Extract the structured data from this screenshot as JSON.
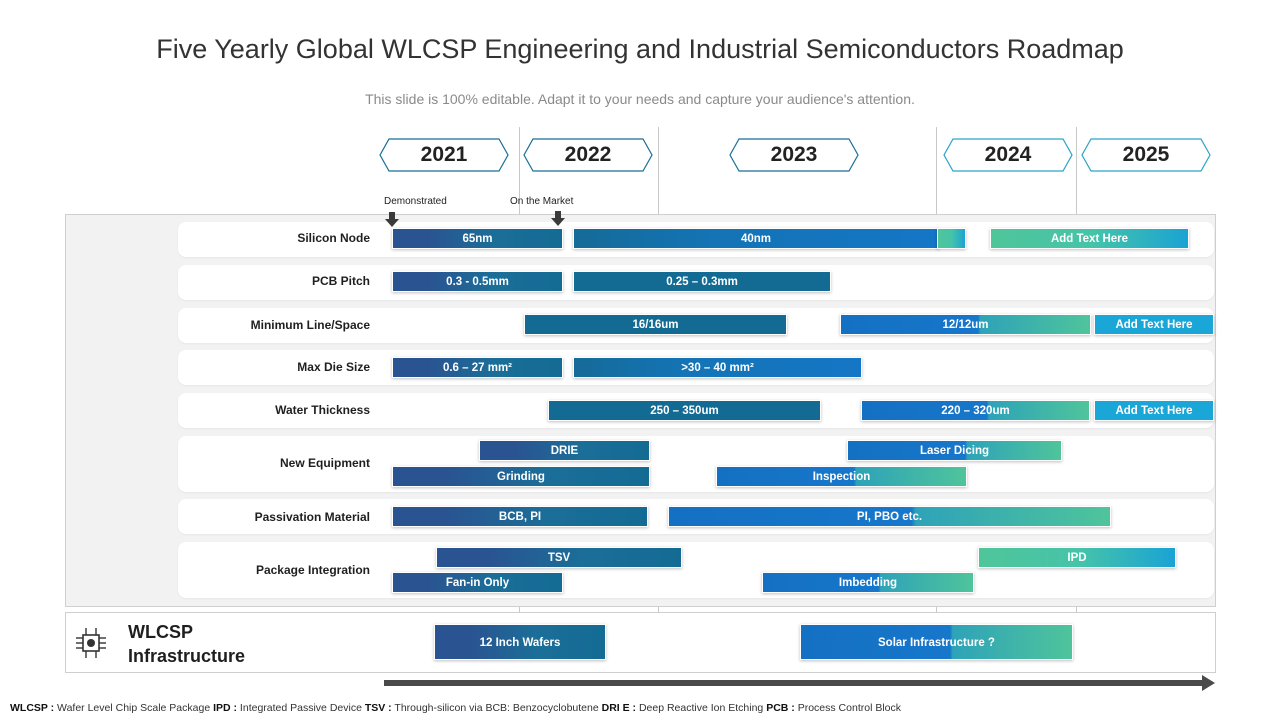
{
  "title": "Five Yearly Global WLCSP Engineering and Industrial Semiconductors Roadmap",
  "subtitle": "This slide is 100% editable. Adapt it to your needs and capture your audience's attention.",
  "years": [
    "2021",
    "2022",
    "2023",
    "2024",
    "2025"
  ],
  "markers": {
    "demonstrated": "Demonstrated",
    "on_market": "On the Market"
  },
  "rows": [
    {
      "label": "Silicon Node",
      "bars": [
        "65nm",
        "40nm",
        "",
        "Add Text Here"
      ]
    },
    {
      "label": "PCB Pitch",
      "bars": [
        "0.3 - 0.5mm",
        "0.25 – 0.3mm"
      ]
    },
    {
      "label": "Minimum Line/Space",
      "bars": [
        "16/16um",
        "12/12um",
        "Add  Text Here"
      ]
    },
    {
      "label": "Max Die Size",
      "bars": [
        "0.6 – 27 mm²",
        ">30 – 40 mm²"
      ]
    },
    {
      "label": "Water Thickness",
      "bars": [
        "250 – 350um",
        "220 – 320um",
        "Add  Text Here"
      ]
    },
    {
      "label": "New Equipment",
      "bars": [
        "DRIE",
        "Grinding",
        "Laser Dicing",
        "Inspection"
      ]
    },
    {
      "label": "Passivation Material",
      "bars": [
        "BCB,  PI",
        "PI, PBO etc."
      ]
    },
    {
      "label": "Package Integration",
      "bars": [
        "TSV",
        "Fan-in Only",
        "IPD",
        "Imbedding"
      ]
    }
  ],
  "infrastructure": {
    "title_line1": "WLCSP",
    "title_line2": "Infrastructure",
    "icon": "chip-icon",
    "bars": [
      "12 Inch Wafers",
      "Solar Infrastructure ?"
    ]
  },
  "footer": [
    {
      "term": "WLCSP :",
      "def": " Wafer Level Chip Scale Package "
    },
    {
      "term": "IPD :",
      "def": " Integrated Passive Device "
    },
    {
      "term": "TSV :",
      "def": " Through-silicon via BCB:  Benzocyclobutene "
    },
    {
      "term": "DRI E :",
      "def": " Deep Reactive Ion Etching "
    },
    {
      "term": "PCB :",
      "def": " Process Control Block"
    }
  ],
  "colors": {
    "navy": "#2a5391",
    "teal": "#136b94",
    "blue": "#1476c6",
    "green": "#4fc59a",
    "cyan": "#1aa6d6"
  }
}
